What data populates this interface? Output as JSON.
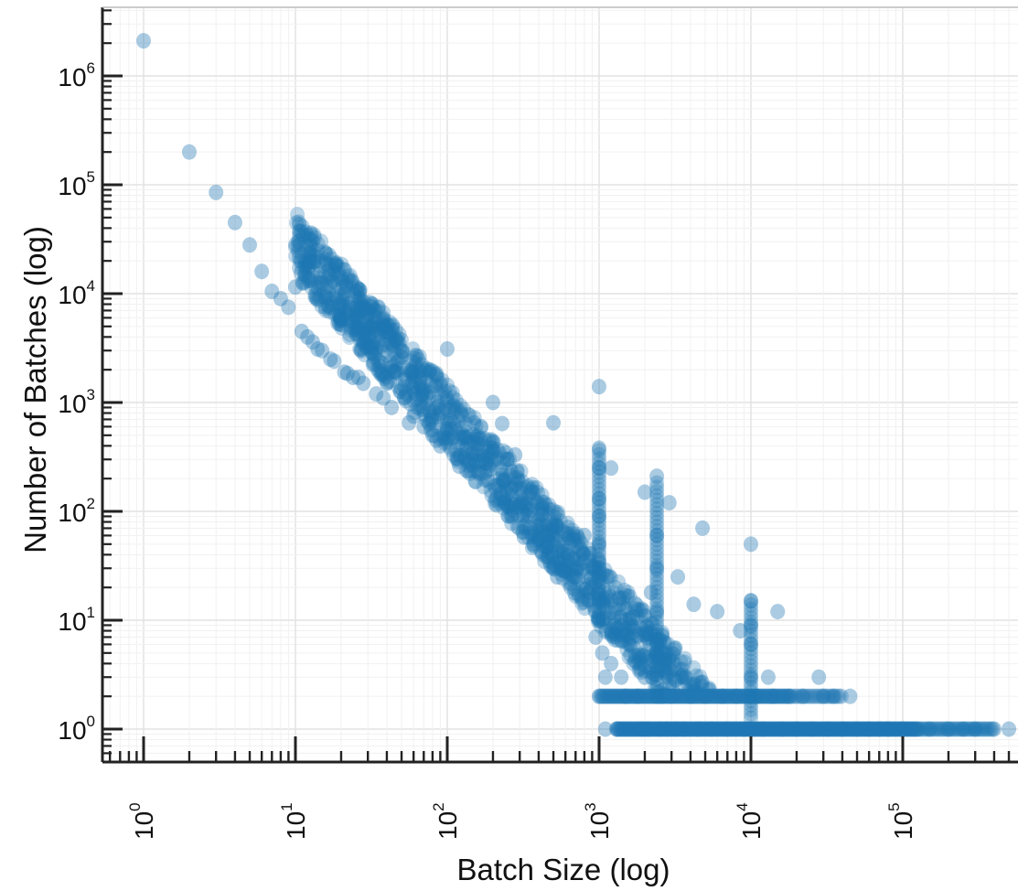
{
  "chart_data": {
    "type": "scatter",
    "title": "",
    "xlabel": "Batch Size (log)",
    "ylabel": "Number of Batches (log)",
    "x_scale": "log",
    "y_scale": "log",
    "xlim": [
      0.75,
      800000
    ],
    "ylim": [
      0.6,
      3000000
    ],
    "grid": true,
    "marker_color": "#1f77b4",
    "x_ticks": [
      {
        "base": "10",
        "exp": "0"
      },
      {
        "base": "10",
        "exp": "1"
      },
      {
        "base": "10",
        "exp": "2"
      },
      {
        "base": "10",
        "exp": "3"
      },
      {
        "base": "10",
        "exp": "4"
      },
      {
        "base": "10",
        "exp": "5"
      }
    ],
    "y_ticks": [
      {
        "base": "10",
        "exp": "0"
      },
      {
        "base": "10",
        "exp": "1"
      },
      {
        "base": "10",
        "exp": "2"
      },
      {
        "base": "10",
        "exp": "3"
      },
      {
        "base": "10",
        "exp": "4"
      },
      {
        "base": "10",
        "exp": "5"
      },
      {
        "base": "10",
        "exp": "6"
      }
    ],
    "points": [
      [
        1,
        2100000
      ],
      [
        2,
        200000
      ],
      [
        3,
        85000
      ],
      [
        4,
        45000
      ],
      [
        5,
        28000
      ],
      [
        6,
        16000
      ],
      [
        7,
        10500
      ],
      [
        8,
        9000
      ],
      [
        9,
        7500
      ],
      [
        10,
        11500
      ],
      [
        11,
        4500
      ],
      [
        12,
        4000
      ],
      [
        13,
        3600
      ],
      [
        14,
        3100
      ],
      [
        15,
        3000
      ],
      [
        17,
        2500
      ],
      [
        18,
        2400
      ],
      [
        20,
        5700
      ],
      [
        21,
        1900
      ],
      [
        22,
        1850
      ],
      [
        24,
        1700
      ],
      [
        26,
        1700
      ],
      [
        28,
        1500
      ],
      [
        32,
        3200
      ],
      [
        34,
        1200
      ],
      [
        38,
        1100
      ],
      [
        40,
        1500
      ],
      [
        43,
        900
      ],
      [
        50,
        2600
      ],
      [
        52,
        1100
      ],
      [
        56,
        650
      ],
      [
        60,
        750
      ],
      [
        64,
        900
      ],
      [
        70,
        600
      ],
      [
        80,
        500
      ],
      [
        85,
        450
      ],
      [
        90,
        400
      ],
      [
        100,
        3100
      ],
      [
        100,
        1050
      ],
      [
        100,
        550
      ],
      [
        110,
        650
      ],
      [
        120,
        260
      ],
      [
        130,
        310
      ],
      [
        140,
        280
      ],
      [
        150,
        650
      ],
      [
        160,
        230
      ],
      [
        180,
        280
      ],
      [
        200,
        1000
      ],
      [
        200,
        380
      ],
      [
        210,
        130
      ],
      [
        230,
        640
      ],
      [
        240,
        120
      ],
      [
        250,
        300
      ],
      [
        280,
        330
      ],
      [
        300,
        110
      ],
      [
        320,
        58
      ],
      [
        350,
        70
      ],
      [
        400,
        55
      ],
      [
        430,
        48
      ],
      [
        460,
        38
      ],
      [
        500,
        650
      ],
      [
        500,
        30
      ],
      [
        530,
        25
      ],
      [
        560,
        33
      ],
      [
        600,
        28
      ],
      [
        650,
        22
      ],
      [
        700,
        25
      ],
      [
        750,
        45
      ],
      [
        800,
        60
      ],
      [
        850,
        18
      ],
      [
        900,
        20
      ],
      [
        950,
        22
      ],
      [
        1000,
        1400
      ],
      [
        1000,
        380
      ],
      [
        1000,
        250
      ],
      [
        1000,
        130
      ],
      [
        1000,
        90
      ],
      [
        1000,
        50
      ],
      [
        1000,
        30
      ],
      [
        1000,
        15
      ],
      [
        950,
        7
      ],
      [
        1050,
        5
      ],
      [
        1100,
        3
      ],
      [
        1100,
        1
      ],
      [
        1200,
        250
      ],
      [
        1200,
        4
      ],
      [
        1300,
        1
      ],
      [
        1400,
        3
      ],
      [
        1500,
        2
      ],
      [
        1500,
        10
      ],
      [
        1600,
        6
      ],
      [
        1700,
        8
      ],
      [
        1800,
        2
      ],
      [
        1900,
        1
      ],
      [
        2000,
        150
      ],
      [
        2000,
        3
      ],
      [
        2100,
        1
      ],
      [
        2200,
        18
      ],
      [
        2400,
        210
      ],
      [
        2400,
        60
      ],
      [
        2400,
        30
      ],
      [
        2400,
        12
      ],
      [
        2400,
        6
      ],
      [
        2500,
        1
      ],
      [
        2600,
        2
      ],
      [
        2700,
        4
      ],
      [
        2800,
        1
      ],
      [
        2900,
        120
      ],
      [
        3000,
        2
      ],
      [
        3200,
        1
      ],
      [
        3300,
        25
      ],
      [
        3500,
        3
      ],
      [
        3600,
        1
      ],
      [
        4000,
        2
      ],
      [
        4200,
        14
      ],
      [
        4500,
        1
      ],
      [
        4800,
        70
      ],
      [
        5000,
        2
      ],
      [
        5500,
        1
      ],
      [
        6000,
        12
      ],
      [
        6500,
        2
      ],
      [
        7000,
        1
      ],
      [
        8000,
        2
      ],
      [
        8500,
        8
      ],
      [
        9000,
        1
      ],
      [
        10000,
        50
      ],
      [
        10000,
        15
      ],
      [
        10000,
        9
      ],
      [
        10000,
        6
      ],
      [
        10000,
        3
      ],
      [
        10000,
        1
      ],
      [
        11000,
        2
      ],
      [
        12000,
        1
      ],
      [
        13000,
        3
      ],
      [
        14000,
        2
      ],
      [
        15000,
        12
      ],
      [
        16000,
        1
      ],
      [
        18000,
        2
      ],
      [
        20000,
        1
      ],
      [
        22000,
        2
      ],
      [
        25000,
        1
      ],
      [
        28000,
        3
      ],
      [
        30000,
        2
      ],
      [
        32000,
        1
      ],
      [
        35000,
        2
      ],
      [
        40000,
        1
      ],
      [
        45000,
        2
      ],
      [
        50000,
        1
      ],
      [
        60000,
        1
      ],
      [
        70000,
        1
      ],
      [
        80000,
        1
      ],
      [
        100000,
        1
      ],
      [
        150000,
        1
      ],
      [
        200000,
        1
      ],
      [
        250000,
        1
      ],
      [
        300000,
        1
      ],
      [
        400000,
        1
      ],
      [
        500000,
        1
      ]
    ]
  }
}
